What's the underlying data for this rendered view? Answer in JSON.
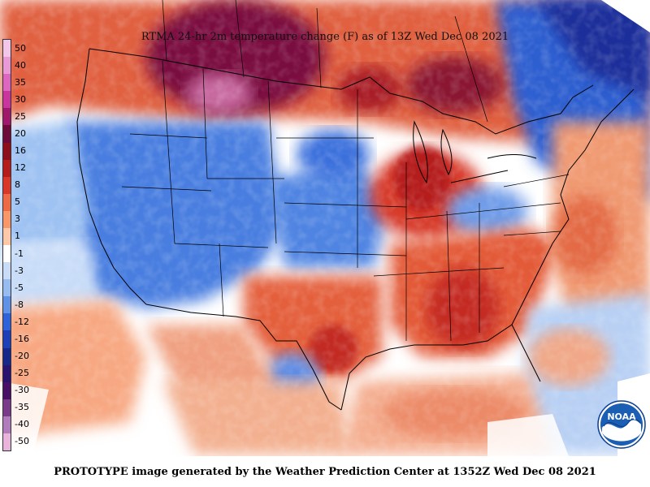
{
  "title": "RTMA 24-hr 2m temperature change (F) as of 13Z Wed Dec 08 2021",
  "footer": "PROTOTYPE image generated by the Weather Prediction Center at 1352Z Wed Dec 08 2021",
  "logo_text": "NOAA",
  "colorbar": [
    {
      "label": "50",
      "color": "#f2c6e8"
    },
    {
      "label": "40",
      "color": "#e89ad6"
    },
    {
      "label": "35",
      "color": "#dd66c0"
    },
    {
      "label": "30",
      "color": "#c9349e"
    },
    {
      "label": "25",
      "color": "#a0186c"
    },
    {
      "label": "20",
      "color": "#6e0a3a"
    },
    {
      "label": "16",
      "color": "#8e0f1c"
    },
    {
      "label": "12",
      "color": "#b51d1d"
    },
    {
      "label": "8",
      "color": "#d8372a"
    },
    {
      "label": "5",
      "color": "#ee6a45"
    },
    {
      "label": "3",
      "color": "#f7976a"
    },
    {
      "label": "1",
      "color": "#fcc8a8"
    },
    {
      "label": "-1",
      "color": "#ffffff"
    },
    {
      "label": "-3",
      "color": "#c8dcf8"
    },
    {
      "label": "-5",
      "color": "#98bcf0"
    },
    {
      "label": "-8",
      "color": "#5f92e6"
    },
    {
      "label": "-12",
      "color": "#2f62d8"
    },
    {
      "label": "-16",
      "color": "#1e3fb8"
    },
    {
      "label": "-20",
      "color": "#17288a"
    },
    {
      "label": "-25",
      "color": "#2a1470"
    },
    {
      "label": "-30",
      "color": "#4a1066"
    },
    {
      "label": "-35",
      "color": "#7a3c8a"
    },
    {
      "label": "-40",
      "color": "#b07cbc"
    },
    {
      "label": "-50",
      "color": "#e8b4dc"
    }
  ]
}
